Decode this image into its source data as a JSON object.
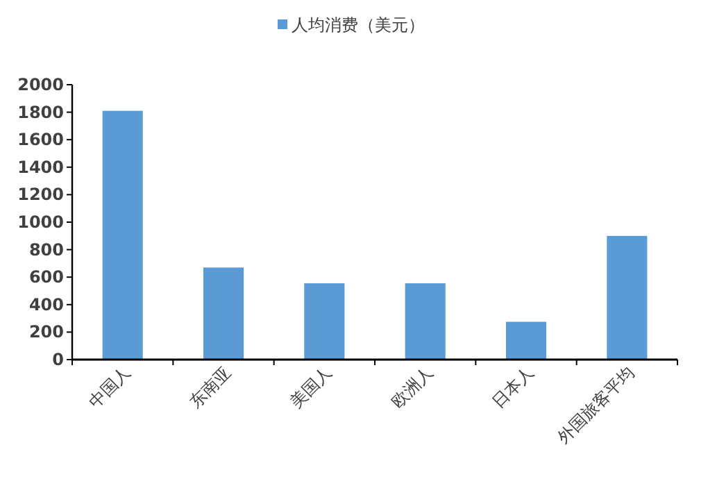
{
  "chart_data": {
    "type": "bar",
    "categories": [
      "中国人",
      "东南亚",
      "美国人",
      "欧洲人",
      "日本人",
      "外国旅客平均"
    ],
    "series": [
      {
        "name": "人均消费（美元）",
        "color": "#5b9bd5",
        "values": [
          1810,
          670,
          555,
          555,
          275,
          900
        ]
      }
    ],
    "ylim": [
      0,
      2000
    ],
    "yticks": [
      0,
      200,
      400,
      600,
      800,
      1000,
      1200,
      1400,
      1600,
      1800,
      2000
    ],
    "grid": false,
    "legend": "top"
  }
}
